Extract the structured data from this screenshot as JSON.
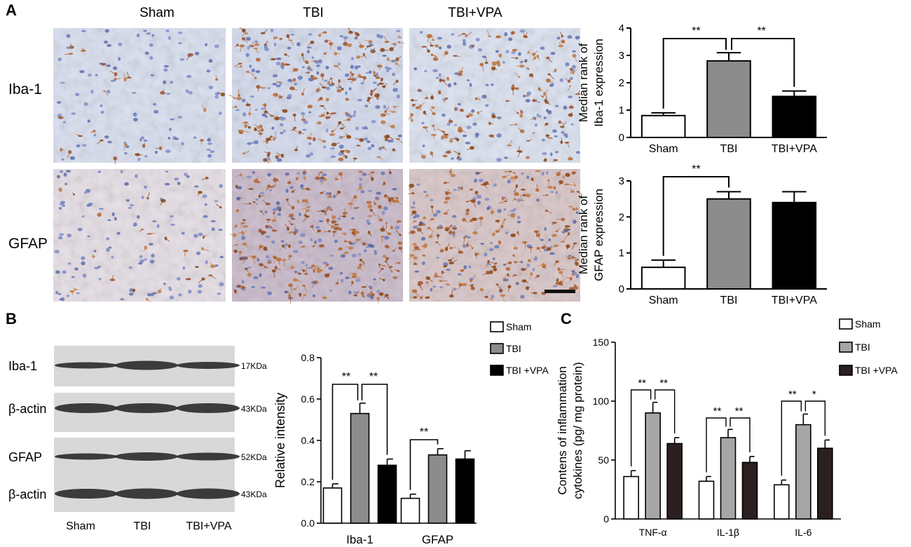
{
  "panel_labels": {
    "a": "A",
    "b": "B",
    "c": "C"
  },
  "panel_a": {
    "column_labels": [
      "Sham",
      "TBI",
      "TBI+VPA"
    ],
    "row_labels": [
      "Iba-1",
      "GFAP"
    ]
  },
  "panel_b": {
    "blot_rows": [
      {
        "protein": "Iba-1",
        "size": "17KDa"
      },
      {
        "protein": "β-actin",
        "size": "43KDa"
      },
      {
        "protein": "GFAP",
        "size": "52KDa"
      },
      {
        "protein": "β-actin",
        "size": "43KDa"
      }
    ],
    "lane_labels": [
      "Sham",
      "TBI",
      "TBI+VPA"
    ]
  },
  "colors": {
    "sham": "#ffffff",
    "tbi": "#8c8c8c",
    "tbi_vpa": "#000000",
    "tbi_vpa_c": "#2b1f1f",
    "tbi_c": "#a6a6a6"
  },
  "chart_data": [
    {
      "type": "bar",
      "ylabel_lines": [
        "Median rank of",
        "Iba-1 expression"
      ],
      "categories": [
        "Sham",
        "TBI",
        "TBI+VPA"
      ],
      "values": [
        0.8,
        2.8,
        1.5
      ],
      "errors": [
        0.1,
        0.3,
        0.2
      ],
      "ylim": [
        0,
        4
      ],
      "yticks": [
        "0",
        "1",
        "2",
        "3",
        "4"
      ],
      "significance": [
        "**",
        "**"
      ]
    },
    {
      "type": "bar",
      "ylabel_lines": [
        "Median rank of",
        "GFAP expression"
      ],
      "categories": [
        "Sham",
        "TBI",
        "TBI+VPA"
      ],
      "values": [
        0.6,
        2.5,
        2.4
      ],
      "errors": [
        0.2,
        0.2,
        0.3
      ],
      "ylim": [
        0,
        3
      ],
      "yticks": [
        "0",
        "1",
        "2",
        "3"
      ],
      "significance": [
        "**"
      ]
    },
    {
      "type": "bar",
      "ylabel": "Relative intensity",
      "categories": [
        "Iba-1",
        "GFAP"
      ],
      "series": [
        {
          "name": "Sham",
          "values": [
            0.17,
            0.12
          ],
          "errors": [
            0.02,
            0.02
          ]
        },
        {
          "name": "TBI",
          "values": [
            0.53,
            0.33
          ],
          "errors": [
            0.05,
            0.03
          ]
        },
        {
          "name": "TBI +VPA",
          "values": [
            0.28,
            0.31
          ],
          "errors": [
            0.03,
            0.04
          ]
        }
      ],
      "ylim": [
        0,
        0.8
      ],
      "yticks": [
        "0.0",
        "0.2",
        "0.4",
        "0.6",
        "0.8"
      ],
      "significance": [
        "**",
        "**",
        "**"
      ],
      "legend": "top-right"
    },
    {
      "type": "bar",
      "ylabel_lines": [
        "Contens of inflammation",
        "cytokines (pg/ mg protein)"
      ],
      "categories": [
        "TNF-α",
        "IL-1β",
        "IL-6"
      ],
      "series": [
        {
          "name": "Sham",
          "values": [
            36,
            32,
            29
          ],
          "errors": [
            5,
            4,
            4
          ]
        },
        {
          "name": "TBI",
          "values": [
            90,
            69,
            80
          ],
          "errors": [
            9,
            7,
            9
          ]
        },
        {
          "name": "TBI +VPA",
          "values": [
            64,
            48,
            60
          ],
          "errors": [
            5,
            5,
            7
          ]
        }
      ],
      "ylim": [
        0,
        150
      ],
      "yticks": [
        "0",
        "50",
        "100",
        "150"
      ],
      "significance": [
        "**",
        "**",
        "**",
        "**",
        "**",
        "*"
      ],
      "legend": "top-right"
    }
  ]
}
